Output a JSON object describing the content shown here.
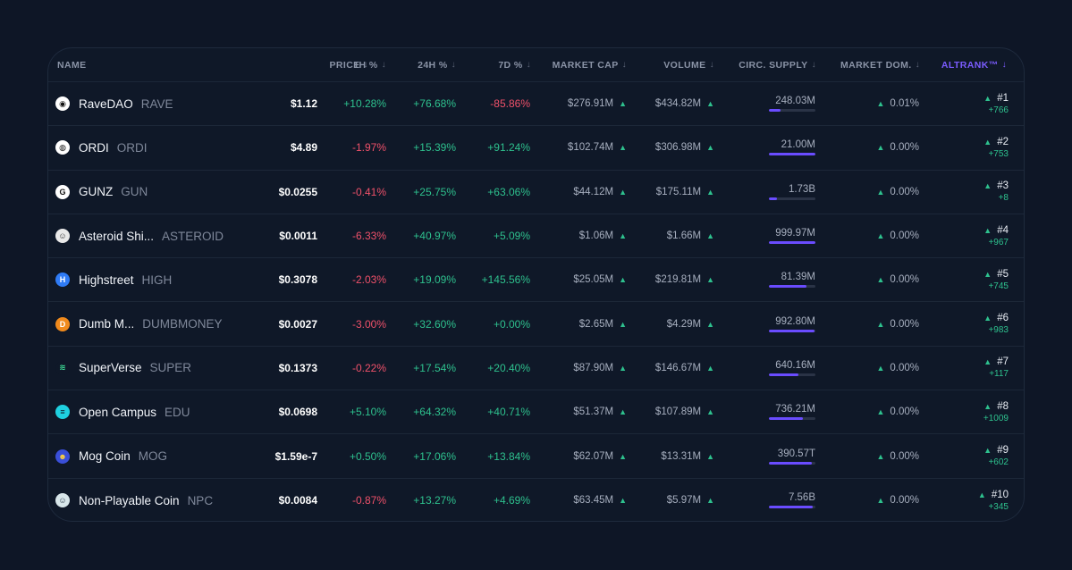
{
  "colors": {
    "accent": "#7b5cff",
    "positive": "#2ec18e",
    "negative": "#f0516a",
    "bar_fill": "#6a4cff"
  },
  "columns": {
    "name": "NAME",
    "price": "PRICE",
    "h1": "1H %",
    "h24": "24H %",
    "d7": "7D %",
    "market_cap": "MARKET CAP",
    "volume": "VOLUME",
    "circ_supply": "CIRC. SUPPLY",
    "market_dom": "MARKET DOM.",
    "altrank": "ALTRANK™"
  },
  "rows": [
    {
      "icon": "ravedao-icon",
      "icon_bg": "#ffffff",
      "icon_fg": "#111111",
      "icon_glyph": "◉",
      "name": "RaveDAO",
      "symbol": "RAVE",
      "price": "$1.12",
      "h1": "+10.28%",
      "h24": "+76.68%",
      "d7": "-85.86%",
      "market_cap": "$276.91M",
      "volume": "$434.82M",
      "supply": "248.03M",
      "supply_fill": 0.25,
      "dom": "0.01%",
      "rank": "#1",
      "rank_change": "+766"
    },
    {
      "icon": "ordi-icon",
      "icon_bg": "#ffffff",
      "icon_fg": "#111111",
      "icon_glyph": "◍",
      "name": "ORDI",
      "symbol": "ORDI",
      "price": "$4.89",
      "h1": "-1.97%",
      "h24": "+15.39%",
      "d7": "+91.24%",
      "market_cap": "$102.74M",
      "volume": "$306.98M",
      "supply": "21.00M",
      "supply_fill": 1.0,
      "dom": "0.00%",
      "rank": "#2",
      "rank_change": "+753"
    },
    {
      "icon": "gunz-icon",
      "icon_bg": "#ffffff",
      "icon_fg": "#111111",
      "icon_glyph": "G",
      "name": "GUNZ",
      "symbol": "GUN",
      "price": "$0.0255",
      "h1": "-0.41%",
      "h24": "+25.75%",
      "d7": "+63.06%",
      "market_cap": "$44.12M",
      "volume": "$175.11M",
      "supply": "1.73B",
      "supply_fill": 0.17,
      "dom": "0.00%",
      "rank": "#3",
      "rank_change": "+8"
    },
    {
      "icon": "asteroid-icon",
      "icon_bg": "#e9e9e9",
      "icon_fg": "#333333",
      "icon_glyph": "☺",
      "name": "Asteroid Shi...",
      "symbol": "ASTEROID",
      "price": "$0.0011",
      "h1": "-6.33%",
      "h24": "+40.97%",
      "d7": "+5.09%",
      "market_cap": "$1.06M",
      "volume": "$1.66M",
      "supply": "999.97M",
      "supply_fill": 1.0,
      "dom": "0.00%",
      "rank": "#4",
      "rank_change": "+967"
    },
    {
      "icon": "highstreet-icon",
      "icon_bg": "#2f7bf5",
      "icon_fg": "#ffffff",
      "icon_glyph": "H",
      "name": "Highstreet",
      "symbol": "HIGH",
      "price": "$0.3078",
      "h1": "-2.03%",
      "h24": "+19.09%",
      "d7": "+145.56%",
      "market_cap": "$25.05M",
      "volume": "$219.81M",
      "supply": "81.39M",
      "supply_fill": 0.81,
      "dom": "0.00%",
      "rank": "#5",
      "rank_change": "+745"
    },
    {
      "icon": "dumbmoney-icon",
      "icon_bg": "#f08a1c",
      "icon_fg": "#ffffff",
      "icon_glyph": "D",
      "name": "Dumb M...",
      "symbol": "DUMBMONEY",
      "price": "$0.0027",
      "h1": "-3.00%",
      "h24": "+32.60%",
      "d7": "+0.00%",
      "market_cap": "$2.65M",
      "volume": "$4.29M",
      "supply": "992.80M",
      "supply_fill": 0.99,
      "dom": "0.00%",
      "rank": "#6",
      "rank_change": "+983"
    },
    {
      "icon": "superverse-icon",
      "icon_bg": "#0f1828",
      "icon_fg": "#3ee39a",
      "icon_glyph": "≋",
      "name": "SuperVerse",
      "symbol": "SUPER",
      "price": "$0.1373",
      "h1": "-0.22%",
      "h24": "+17.54%",
      "d7": "+20.40%",
      "market_cap": "$87.90M",
      "volume": "$146.67M",
      "supply": "640.16M",
      "supply_fill": 0.64,
      "dom": "0.00%",
      "rank": "#7",
      "rank_change": "+117"
    },
    {
      "icon": "open-campus-icon",
      "icon_bg": "#1fd0e0",
      "icon_fg": "#0f1828",
      "icon_glyph": "≡",
      "name": "Open Campus",
      "symbol": "EDU",
      "price": "$0.0698",
      "h1": "+5.10%",
      "h24": "+64.32%",
      "d7": "+40.71%",
      "market_cap": "$51.37M",
      "volume": "$107.89M",
      "supply": "736.21M",
      "supply_fill": 0.74,
      "dom": "0.00%",
      "rank": "#8",
      "rank_change": "+1009"
    },
    {
      "icon": "mog-coin-icon",
      "icon_bg": "#3a4fd8",
      "icon_fg": "#ffd23f",
      "icon_glyph": "☻",
      "name": "Mog Coin",
      "symbol": "MOG",
      "price": "$1.59e-7",
      "h1": "+0.50%",
      "h24": "+17.06%",
      "d7": "+13.84%",
      "market_cap": "$62.07M",
      "volume": "$13.31M",
      "supply": "390.57T",
      "supply_fill": 0.93,
      "dom": "0.00%",
      "rank": "#9",
      "rank_change": "+602"
    },
    {
      "icon": "npc-icon",
      "icon_bg": "#d8e6ea",
      "icon_fg": "#2a3a48",
      "icon_glyph": "☺",
      "name": "Non-Playable Coin",
      "symbol": "NPC",
      "price": "$0.0084",
      "h1": "-0.87%",
      "h24": "+13.27%",
      "d7": "+4.69%",
      "market_cap": "$63.45M",
      "volume": "$5.97M",
      "supply": "7.56B",
      "supply_fill": 0.95,
      "dom": "0.00%",
      "rank": "#10",
      "rank_change": "+345"
    }
  ]
}
